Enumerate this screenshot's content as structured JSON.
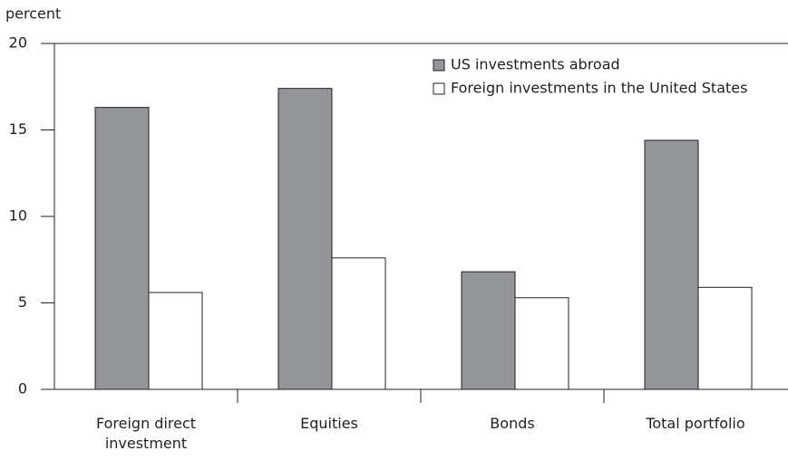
{
  "chart_data": {
    "type": "bar",
    "y_label": "percent",
    "categories": [
      "Foreign direct investment",
      "Equities",
      "Bonds",
      "Total portfolio"
    ],
    "series": [
      {
        "name": "US investments abroad",
        "color": "#939598",
        "values": [
          16.3,
          17.4,
          6.8,
          14.4
        ]
      },
      {
        "name": "Foreign investments in the United States",
        "color": "#ffffff",
        "values": [
          5.6,
          7.6,
          5.3,
          5.9
        ]
      }
    ],
    "ylim": [
      0,
      20
    ],
    "yticks": [
      0,
      5,
      10,
      15,
      20
    ],
    "grid": false,
    "legend": "upper right"
  }
}
